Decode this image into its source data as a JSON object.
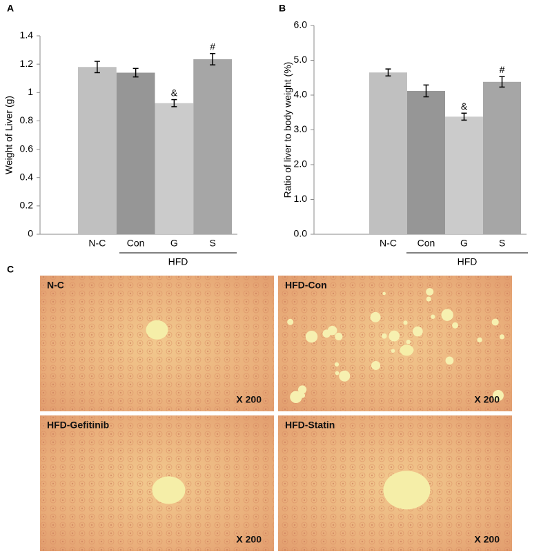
{
  "panels": [
    "A",
    "B",
    "C"
  ],
  "chart_data": [
    {
      "type": "bar",
      "y_label": "Weight of Liver (g)",
      "categories": [
        "N-C",
        "Con",
        "G",
        "S"
      ],
      "group_label": "HFD",
      "values": [
        1.18,
        1.14,
        0.925,
        1.235
      ],
      "errors": [
        0.04,
        0.03,
        0.025,
        0.04
      ],
      "colors": [
        "#c0c0c0",
        "#969696",
        "#cbcbcb",
        "#a6a6a6"
      ],
      "annotations": [
        null,
        null,
        "&",
        "#"
      ],
      "ylim": [
        0,
        1.4
      ],
      "yticks": [
        0,
        0.2,
        0.4,
        0.6,
        0.8,
        1,
        1.2,
        1.4
      ],
      "grid": false
    },
    {
      "type": "bar",
      "y_label": "Ratio of liver to body weight (%)",
      "categories": [
        "N-C",
        "Con",
        "G",
        "S"
      ],
      "group_label": "HFD",
      "values": [
        4.65,
        4.12,
        3.38,
        4.38
      ],
      "errors": [
        0.1,
        0.17,
        0.1,
        0.15
      ],
      "colors": [
        "#c0c0c0",
        "#969696",
        "#cbcbcb",
        "#a6a6a6"
      ],
      "annotations": [
        null,
        null,
        "&",
        "#"
      ],
      "ylim": [
        0,
        6
      ],
      "yticks": [
        {
          "value": 0,
          "label": "0.0"
        },
        {
          "value": 1,
          "label": "1.0"
        },
        {
          "value": 2,
          "label": "2.0"
        },
        {
          "value": 3,
          "label": "3.0"
        },
        {
          "value": 4,
          "label": "4.0"
        },
        {
          "value": 5,
          "label": "5.0"
        },
        {
          "value": 6,
          "label": "6.0"
        }
      ],
      "grid": false
    }
  ],
  "images": [
    {
      "label": "N-C",
      "magnification": "X 200"
    },
    {
      "label": "HFD-Con",
      "magnification": "X 200"
    },
    {
      "label": "HFD-Gefitinib",
      "magnification": "X 200"
    },
    {
      "label": "HFD-Statin",
      "magnification": "X 200"
    }
  ]
}
